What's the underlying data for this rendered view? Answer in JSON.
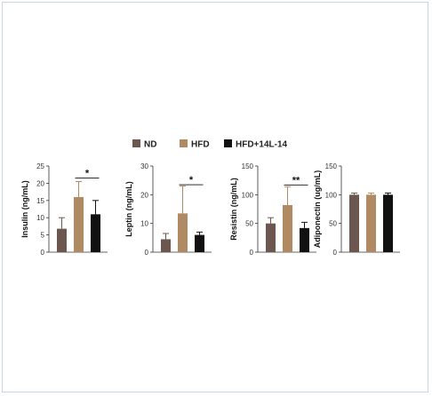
{
  "chart_data": {
    "type": "bar",
    "legend": {
      "placement": "top-center",
      "entries": [
        {
          "label": "ND",
          "color": "#6b5750"
        },
        {
          "label": "HFD",
          "color": "#b08a62"
        },
        {
          "label": "HFD+14L-14",
          "color": "#111111"
        }
      ]
    },
    "panels": [
      {
        "ylabel": "Insulin (ng/mL)",
        "ylim": [
          0,
          25
        ],
        "ticks": [
          "0",
          "5",
          "10",
          "15",
          "20",
          "25"
        ],
        "tick_values": [
          0,
          5,
          10,
          15,
          20,
          25
        ],
        "values": [
          6.8,
          16,
          11
        ],
        "errors": [
          3.2,
          4.5,
          4
        ],
        "significance": {
          "label": "*",
          "from": 1,
          "to": 2,
          "y": 21.5
        }
      },
      {
        "ylabel": "Leptin (ng/mL)",
        "ylim": [
          0,
          30
        ],
        "ticks": [
          "0",
          "10",
          "20",
          "30"
        ],
        "tick_values": [
          0,
          10,
          20,
          30
        ],
        "values": [
          4.5,
          13.5,
          6
        ],
        "errors": [
          2,
          9.5,
          1
        ],
        "significance": {
          "label": "*",
          "from": 1,
          "to": 2,
          "y": 23.5
        }
      },
      {
        "ylabel": "Resistin (ng/mL)",
        "ylim": [
          0,
          150
        ],
        "ticks": [
          "0",
          "50",
          "100",
          "150"
        ],
        "tick_values": [
          0,
          50,
          100,
          150
        ],
        "values": [
          50,
          82,
          42
        ],
        "errors": [
          10,
          32,
          10
        ],
        "significance": {
          "label": "**",
          "from": 1,
          "to": 2,
          "y": 117
        }
      },
      {
        "ylabel": "Adiponectin (ug/mL)",
        "ylim": [
          0,
          150
        ],
        "ticks": [
          "0",
          "50",
          "100",
          "150"
        ],
        "tick_values": [
          0,
          50,
          100,
          150
        ],
        "values": [
          100,
          100,
          100
        ],
        "errors": [
          3,
          3,
          3
        ],
        "significance": null
      }
    ]
  }
}
